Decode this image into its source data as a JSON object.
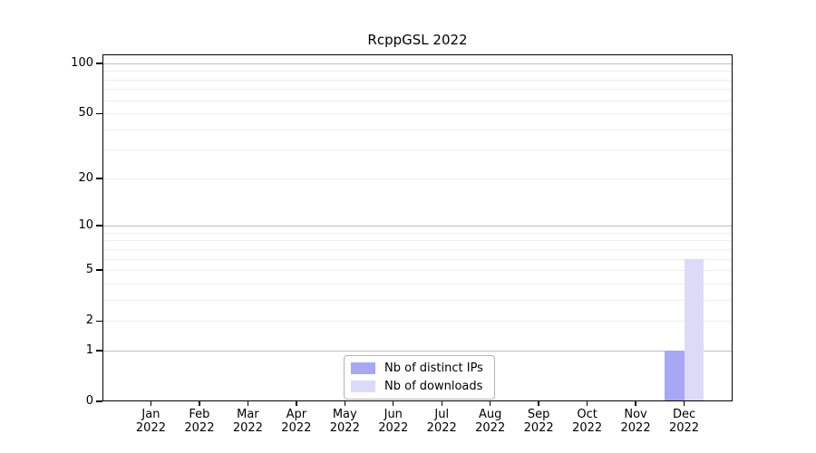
{
  "chart_data": {
    "type": "bar",
    "title": "RcppGSL 2022",
    "xlabel": "",
    "ylabel": "",
    "categories": [
      "Jan",
      "Feb",
      "Mar",
      "Apr",
      "May",
      "Jun",
      "Jul",
      "Aug",
      "Sep",
      "Oct",
      "Nov",
      "Dec"
    ],
    "category_year": "2022",
    "series": [
      {
        "name": "Nb of distinct IPs",
        "color": "#a7a7f3",
        "values": [
          0,
          0,
          0,
          0,
          0,
          0,
          0,
          0,
          0,
          0,
          0,
          1
        ]
      },
      {
        "name": "Nb of downloads",
        "color": "#dbdbf8",
        "values": [
          0,
          0,
          0,
          0,
          0,
          0,
          0,
          0,
          0,
          0,
          0,
          6
        ]
      }
    ],
    "yscale": "log1p",
    "ylim": [
      0,
      100
    ],
    "yticks": [
      0,
      1,
      2,
      5,
      10,
      20,
      50,
      100
    ],
    "grid": {
      "major_lines": [
        1,
        10,
        100
      ],
      "minor_lines": [
        2,
        3,
        4,
        5,
        6,
        7,
        8,
        9,
        20,
        30,
        40,
        50,
        60,
        70,
        80,
        90
      ],
      "major_color": "#bdbdbd",
      "minor_color": "#ededed"
    },
    "legend": {
      "position": "inside-bottom-center",
      "entries": [
        "Nb of distinct IPs",
        "Nb of downloads"
      ]
    },
    "colors": {
      "background": "#ffffff",
      "axis": "#000000",
      "text": "#000000"
    }
  }
}
